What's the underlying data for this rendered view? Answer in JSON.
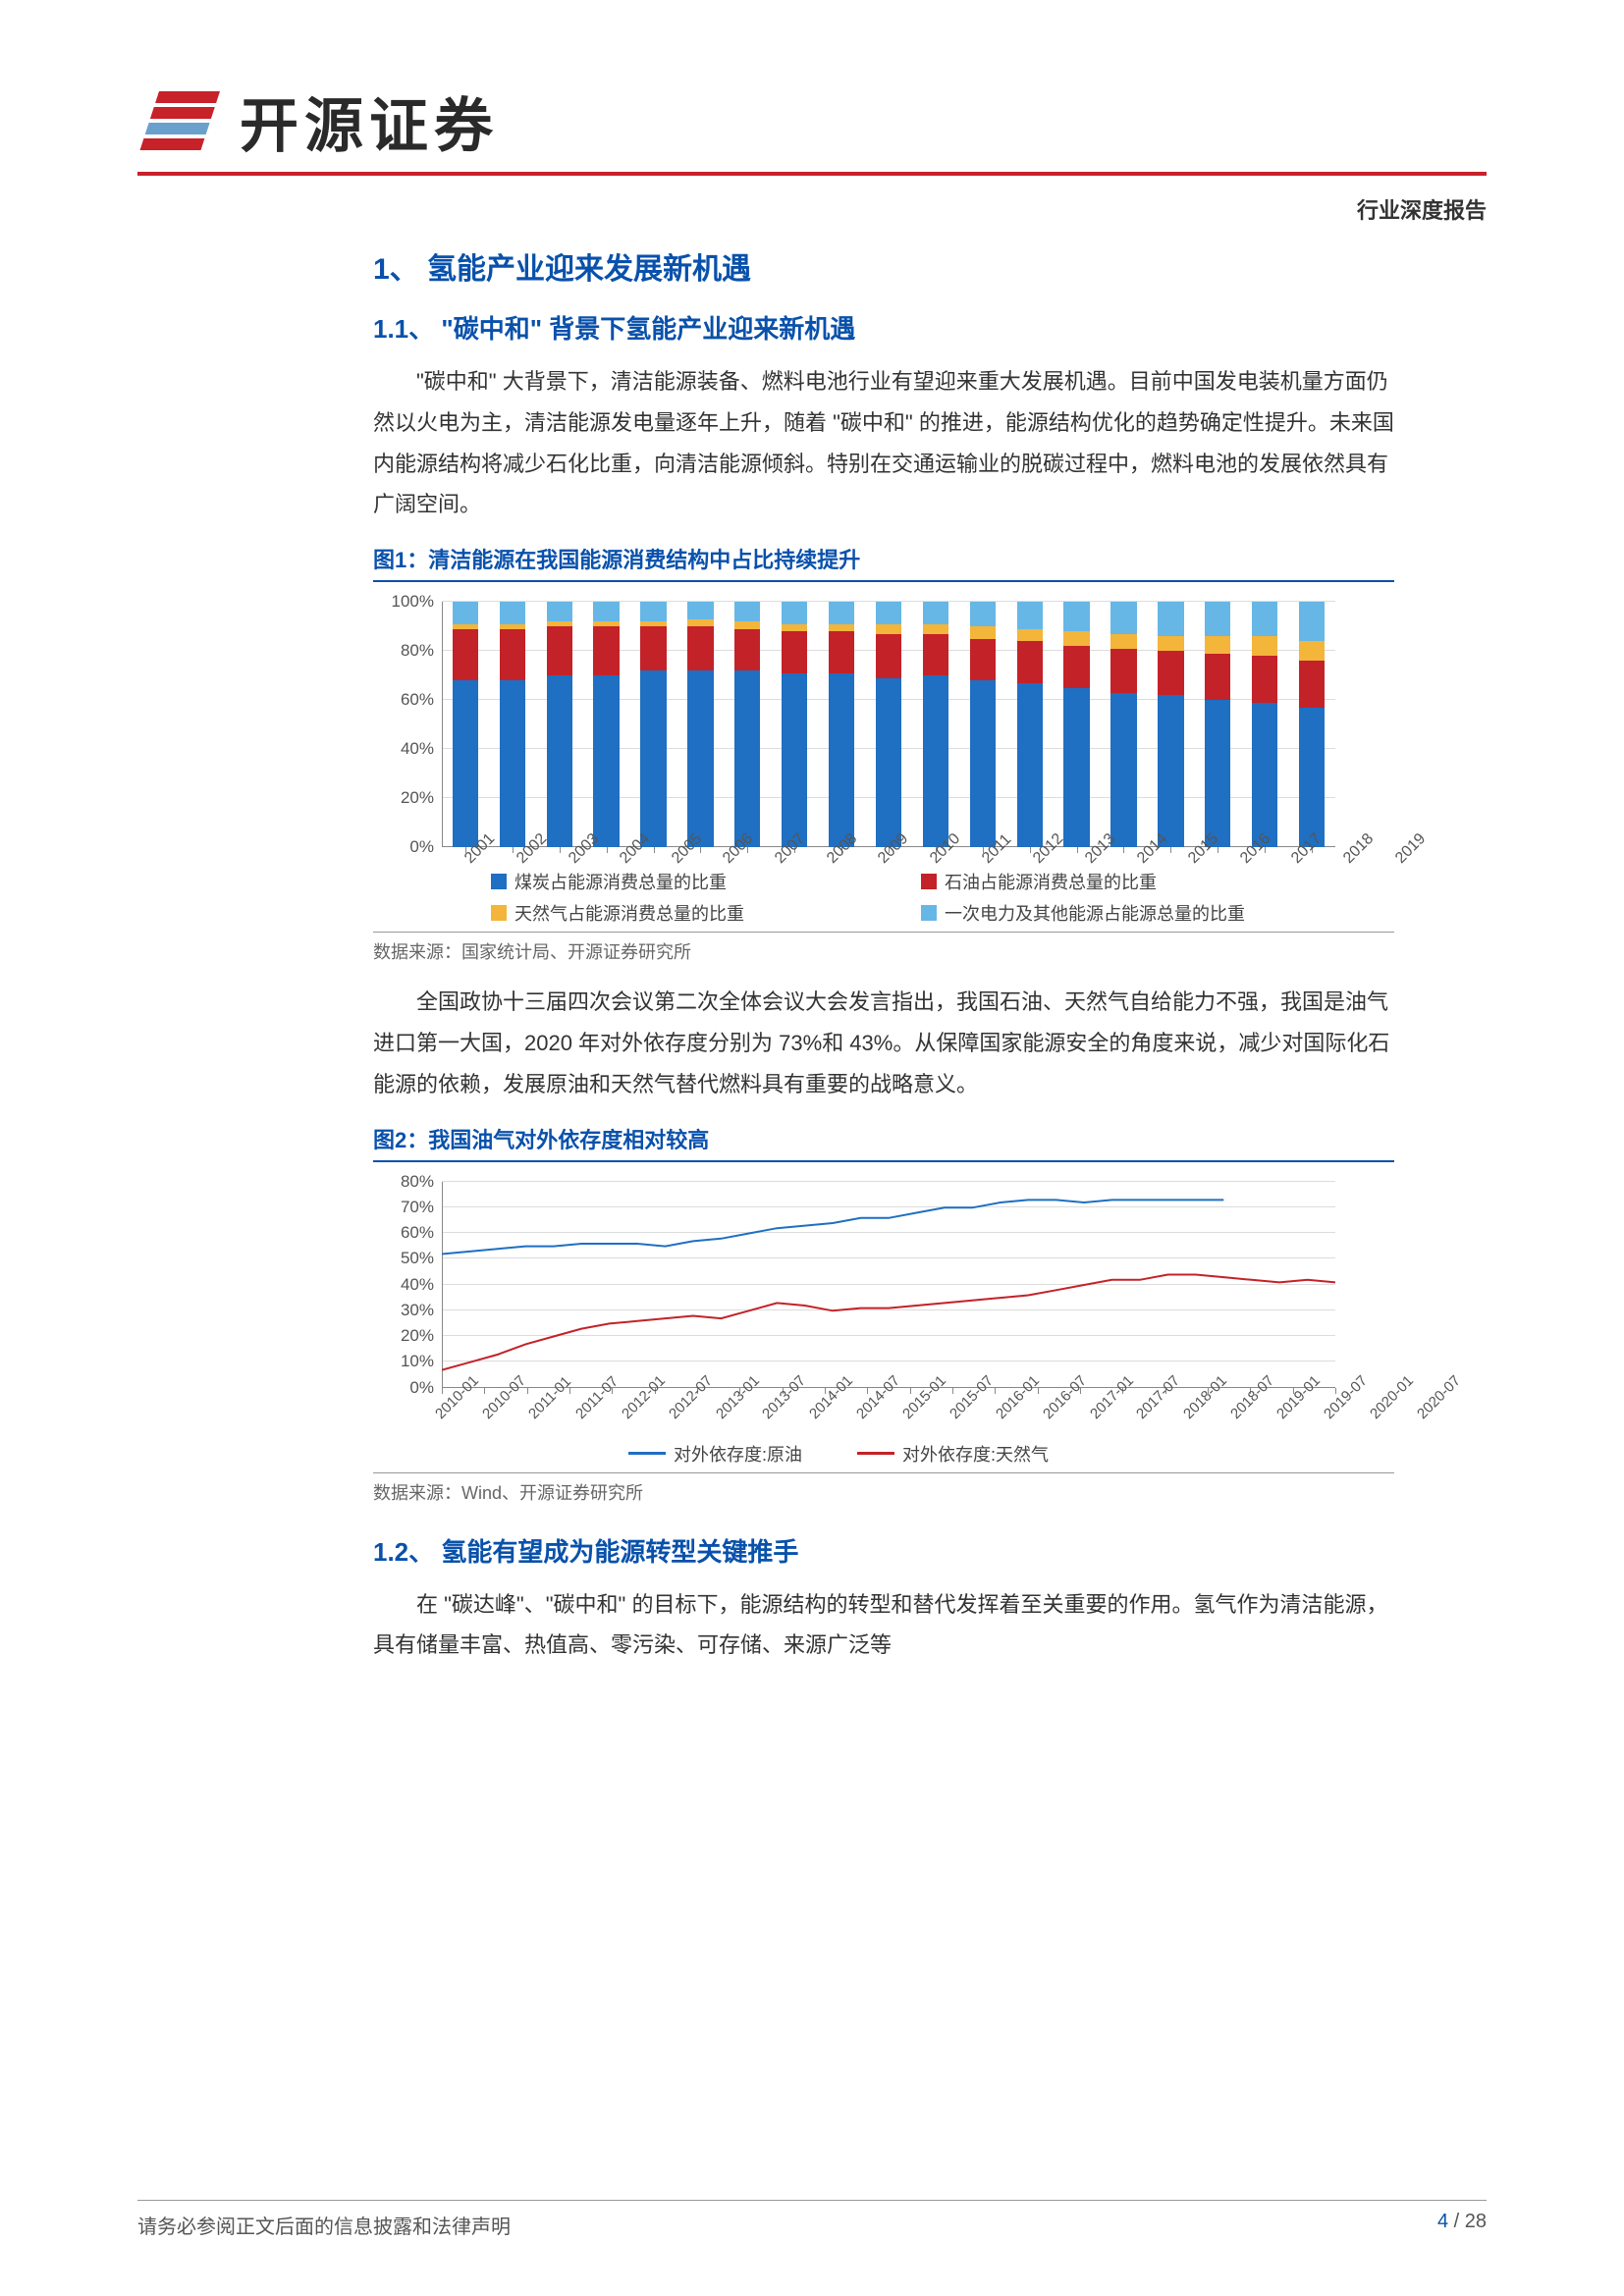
{
  "doc_type": "行业深度报告",
  "logo_text": "开源证券",
  "h1": "1、 氢能产业迎来发展新机遇",
  "h2_1": "1.1、 \"碳中和\" 背景下氢能产业迎来新机遇",
  "p1": "\"碳中和\" 大背景下，清洁能源装备、燃料电池行业有望迎来重大发展机遇。目前中国发电装机量方面仍然以火电为主，清洁能源发电量逐年上升，随着 \"碳中和\" 的推进，能源结构优化的趋势确定性提升。未来国内能源结构将减少石化比重，向清洁能源倾斜。特别在交通运输业的脱碳过程中，燃料电池的发展依然具有广阔空间。",
  "fig1_title": "图1：清洁能源在我国能源消费结构中占比持续提升",
  "fig1_source": "数据来源：国家统计局、开源证券研究所",
  "p2": "全国政协十三届四次会议第二次全体会议大会发言指出，我国石油、天然气自给能力不强，我国是油气进口第一大国，2020 年对外依存度分别为 73%和 43%。从保障国家能源安全的角度来说，减少对国际化石能源的依赖，发展原油和天然气替代燃料具有重要的战略意义。",
  "fig2_title": "图2：我国油气对外依存度相对较高",
  "fig2_source": "数据来源：Wind、开源证券研究所",
  "h2_2": "1.2、 氢能有望成为能源转型关键推手",
  "p3": "在 \"碳达峰\"、\"碳中和\" 的目标下，能源结构的转型和替代发挥着至关重要的作用。氢气作为清洁能源，具有储量丰富、热值高、零污染、可存储、来源广泛等",
  "footer_left": "请务必参阅正文后面的信息披露和法律声明",
  "footer_page": "4",
  "footer_total": "28",
  "chart1": {
    "type": "stacked-bar",
    "ylim": [
      0,
      100
    ],
    "ytick_step": 20,
    "ytick_suffix": "%",
    "categories": [
      "2001",
      "2002",
      "2003",
      "2004",
      "2005",
      "2006",
      "2007",
      "2008",
      "2009",
      "2010",
      "2011",
      "2012",
      "2013",
      "2014",
      "2015",
      "2016",
      "2017",
      "2018",
      "2019"
    ],
    "series": [
      {
        "name": "煤炭占能源消费总量的比重",
        "color": "#1f6fc2",
        "values": [
          68,
          68,
          70,
          70,
          72,
          72,
          72,
          71,
          71,
          69,
          70,
          68,
          67,
          65,
          63,
          62,
          60,
          59,
          57
        ]
      },
      {
        "name": "石油占能源消费总量的比重",
        "color": "#c32228",
        "values": [
          21,
          21,
          20,
          20,
          18,
          18,
          17,
          17,
          17,
          18,
          17,
          17,
          17,
          17,
          18,
          18,
          19,
          19,
          19
        ]
      },
      {
        "name": "天然气占能源消费总量的比重",
        "color": "#f3b53a",
        "values": [
          2,
          2,
          2,
          2,
          2,
          3,
          3,
          3,
          3,
          4,
          4,
          5,
          5,
          6,
          6,
          6,
          7,
          8,
          8
        ]
      },
      {
        "name": "一次电力及其他能源占能源总量的比重",
        "color": "#66b7e6",
        "values": [
          9,
          9,
          8,
          8,
          8,
          7,
          8,
          9,
          9,
          9,
          9,
          10,
          11,
          12,
          13,
          14,
          14,
          14,
          16
        ]
      }
    ],
    "bar_width": 0.55,
    "background_color": "#ffffff",
    "grid_color": "#dcdcdc",
    "label_fontsize": 17,
    "legend_fontsize": 18
  },
  "chart2": {
    "type": "line",
    "ylim": [
      0,
      80
    ],
    "ytick_step": 10,
    "ytick_suffix": "%",
    "x_labels": [
      "2010-01",
      "2010-07",
      "2011-01",
      "2011-07",
      "2012-01",
      "2012-07",
      "2013-01",
      "2013-07",
      "2014-01",
      "2014-07",
      "2015-01",
      "2015-07",
      "2016-01",
      "2016-07",
      "2017-01",
      "2017-07",
      "2018-01",
      "2018-07",
      "2019-01",
      "2019-07",
      "2020-01",
      "2020-07"
    ],
    "series": [
      {
        "name": "对外依存度:原油",
        "color": "#1f6fc2",
        "line_width": 2,
        "values": [
          52,
          53,
          54,
          55,
          55,
          56,
          56,
          56,
          55,
          57,
          58,
          60,
          62,
          63,
          64,
          66,
          66,
          68,
          70,
          70,
          72,
          73,
          73,
          72,
          73,
          73,
          73,
          73,
          73
        ]
      },
      {
        "name": "对外依存度:天然气",
        "color": "#c32228",
        "line_width": 2,
        "values": [
          7,
          10,
          13,
          17,
          20,
          23,
          25,
          26,
          27,
          28,
          27,
          30,
          33,
          32,
          30,
          31,
          31,
          32,
          33,
          34,
          35,
          36,
          38,
          40,
          42,
          42,
          44,
          44,
          43,
          42,
          41,
          42,
          41
        ]
      }
    ],
    "background_color": "#ffffff",
    "grid_color": "#dcdcdc",
    "label_fontsize": 16,
    "legend_fontsize": 18
  }
}
